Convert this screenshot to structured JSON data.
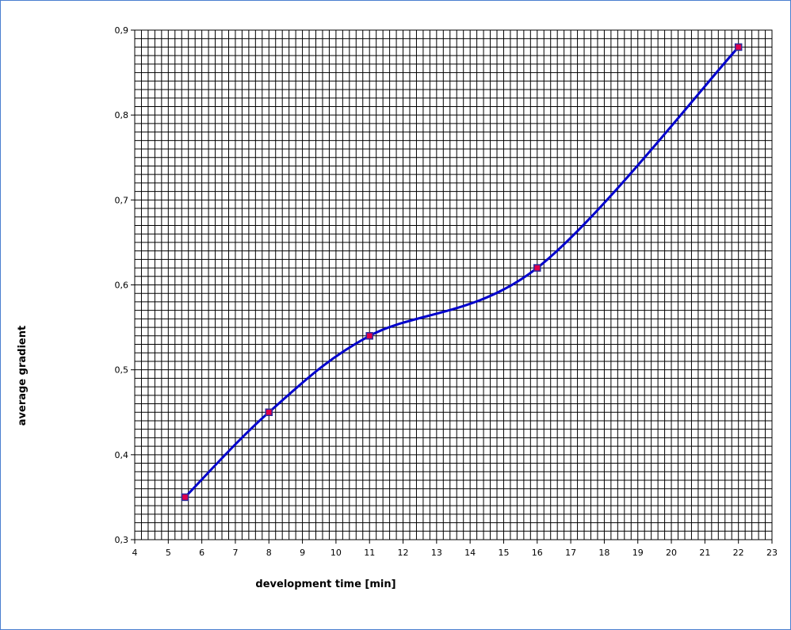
{
  "chart_data": {
    "type": "line",
    "title": "",
    "xlabel": "development time [min]",
    "ylabel": "average gradient",
    "xlim": [
      4,
      23
    ],
    "ylim": [
      0.3,
      0.9
    ],
    "x_ticks": [
      "4",
      "5",
      "6",
      "7",
      "8",
      "9",
      "10",
      "11",
      "12",
      "13",
      "14",
      "15",
      "16",
      "17",
      "18",
      "19",
      "20",
      "21",
      "22",
      "23"
    ],
    "y_ticks": [
      "0,3",
      "0,4",
      "0,5",
      "0,6",
      "0,7",
      "0,8",
      "0,9"
    ],
    "grid": true,
    "smooth": true,
    "series": [
      {
        "x": [
          5.5,
          8,
          11,
          16,
          22
        ],
        "y": [
          0.35,
          0.45,
          0.54,
          0.62,
          0.88
        ],
        "line_color": "#0000cc",
        "marker_fill": "#e0004a",
        "marker_stroke": "#2a2a9a"
      }
    ]
  }
}
